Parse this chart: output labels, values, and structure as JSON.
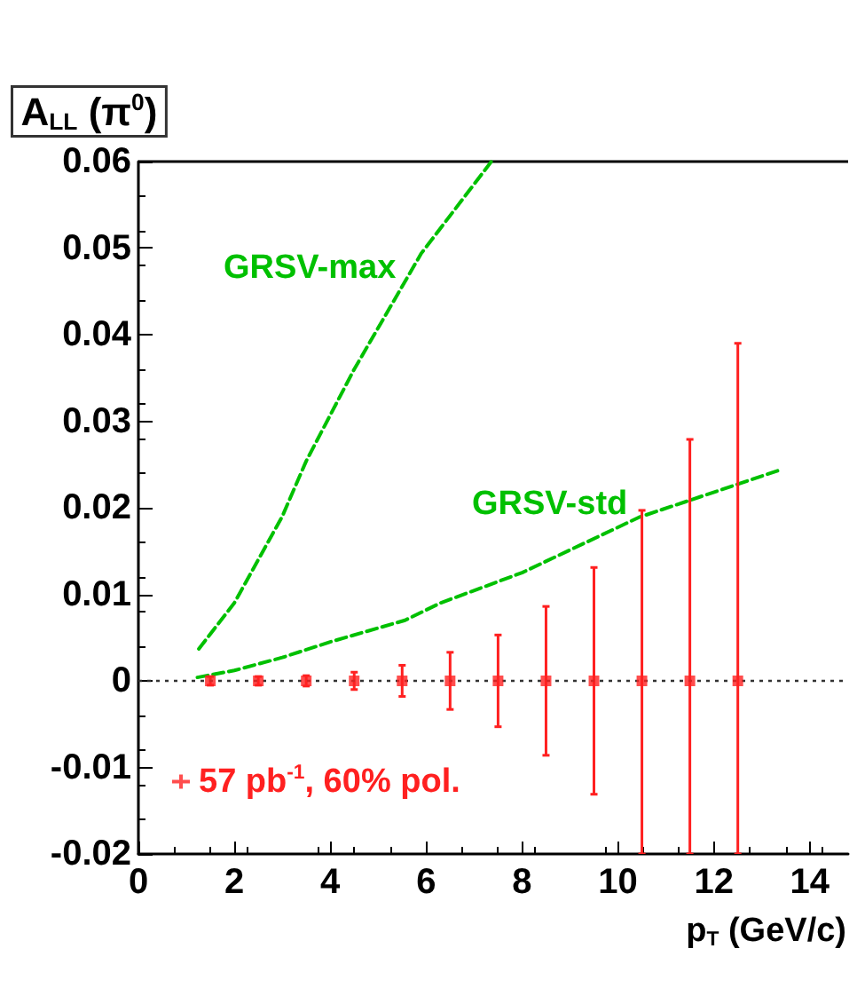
{
  "chart_data": {
    "type": "scatter",
    "xlabel": "p$_{T}$ (GeV/c)",
    "ylabel": "A$_{LL}$ (π$^{0}$)",
    "xlim": [
      0,
      14.8
    ],
    "xticks": [
      0,
      2,
      4,
      6,
      8,
      10,
      12,
      14
    ],
    "ylim": [
      -0.02,
      0.06
    ],
    "yticks": [
      -0.02,
      -0.01,
      0,
      0.01,
      0.02,
      0.03,
      0.04,
      0.05,
      0.06
    ],
    "series": [
      {
        "name": "57 pb$^{-1}$, 60% pol.",
        "color": "#ff2020",
        "marker": "square",
        "x": [
          1.5,
          2.5,
          3.5,
          4.5,
          5.5,
          6.5,
          7.5,
          8.5,
          9.5,
          10.5,
          11.5,
          12.5
        ],
        "values": [
          0,
          0,
          0,
          0,
          0,
          0,
          0,
          0,
          0,
          0,
          0,
          0
        ],
        "errors": [
          0.0005,
          0.0005,
          0.0006,
          0.001,
          0.0018,
          0.0033,
          0.0053,
          0.0086,
          0.0131,
          [
            -0.02,
            0.0197
          ],
          [
            -0.02,
            0.0279
          ],
          [
            -0.02,
            0.039
          ]
        ]
      },
      {
        "name": "GRSV-max",
        "type": "line",
        "color": "#00c000",
        "line_style": "dashed",
        "marker": "none",
        "x": [
          1.26,
          2,
          3,
          3.5,
          4.5,
          5.9,
          7.36
        ],
        "values": [
          0.0037,
          0.009,
          0.019,
          0.0254,
          0.036,
          0.0494,
          0.06
        ]
      },
      {
        "name": "GRSV-std",
        "type": "line",
        "color": "#00c000",
        "line_style": "dashed",
        "marker": "none",
        "x": [
          1.23,
          2,
          3,
          4,
          5.56,
          6.3,
          8,
          10.44,
          13.4
        ],
        "values": [
          0.0004,
          0.0012,
          0.0027,
          0.0045,
          0.007,
          0.009,
          0.0125,
          0.0189,
          0.0244
        ]
      }
    ],
    "ref_lines": [
      {
        "axis": "y",
        "value": 0,
        "color": "#333333",
        "line_style": "dotted"
      }
    ],
    "legend": "bottom left",
    "grid": false
  }
}
